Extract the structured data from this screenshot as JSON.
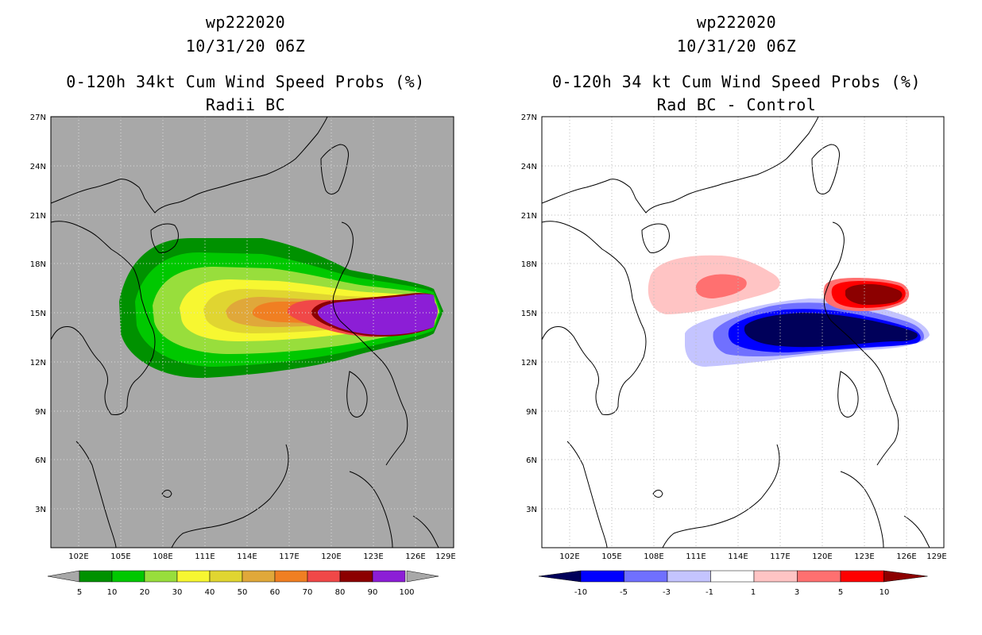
{
  "left": {
    "title_line1": "wp222020",
    "title_line2": "10/31/20 06Z",
    "title_line3": "0-120h 34kt Cum Wind Speed Probs (%)",
    "title_line4": "Radii BC",
    "background_color": "#a8a8a8",
    "lat_labels": [
      "27N",
      "24N",
      "21N",
      "18N",
      "15N",
      "12N",
      "9N",
      "6N",
      "3N"
    ],
    "lon_labels": [
      "102E",
      "105E",
      "108E",
      "111E",
      "114E",
      "117E",
      "120E",
      "123E",
      "126E",
      "129E"
    ],
    "colorbar": {
      "labels": [
        "5",
        "10",
        "20",
        "30",
        "40",
        "50",
        "60",
        "70",
        "80",
        "90",
        "100"
      ],
      "colors": [
        "#009100",
        "#00c800",
        "#98de3c",
        "#f7f731",
        "#e0d531",
        "#e0a83a",
        "#f07f22",
        "#f04848",
        "#8c0000",
        "#8c1ed6"
      ]
    }
  },
  "right": {
    "title_line1": "wp222020",
    "title_line2": "10/31/20 06Z",
    "title_line3": "0-120h 34 kt Cum Wind Speed Probs (%)",
    "title_line4": "Rad BC - Control",
    "background_color": "#ffffff",
    "lat_labels": [
      "27N",
      "24N",
      "21N",
      "18N",
      "15N",
      "12N",
      "9N",
      "6N",
      "3N"
    ],
    "lon_labels": [
      "102E",
      "105E",
      "108E",
      "111E",
      "114E",
      "117E",
      "120E",
      "123E",
      "126E",
      "129E"
    ],
    "colorbar": {
      "labels": [
        "-10",
        "-5",
        "-3",
        "-1",
        "1",
        "3",
        "5",
        "10"
      ],
      "colors": [
        "#00005a",
        "#0000ff",
        "#7070ff",
        "#c4c4ff",
        "#ffffff",
        "#ffc4c4",
        "#ff7070",
        "#ff0000",
        "#8c0000"
      ]
    }
  }
}
